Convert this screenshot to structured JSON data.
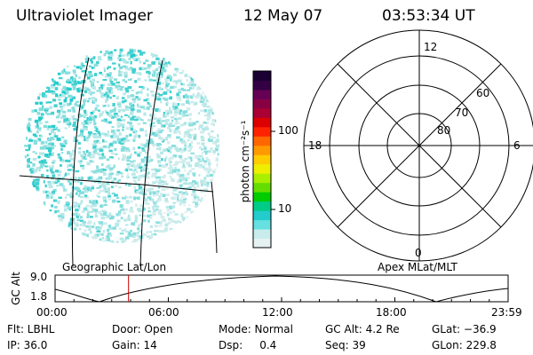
{
  "header": {
    "title": "Ultraviolet Imager",
    "date": "12 May 07",
    "time": "03:53:34 UT"
  },
  "colorbar": {
    "label": "photon cm⁻²s⁻¹",
    "ticks": [
      {
        "label": "100",
        "value": 100
      },
      {
        "label": "10",
        "value": 10
      }
    ],
    "colors": [
      "#e6f2f2",
      "#c8ecec",
      "#66e0e0",
      "#22cccc",
      "#00cc88",
      "#00cc00",
      "#66dd00",
      "#aaee00",
      "#eeee00",
      "#ffcc00",
      "#ff9900",
      "#ff6600",
      "#ff2200",
      "#dd0000",
      "#aa0033",
      "#880044",
      "#660055",
      "#330044",
      "#1a0033"
    ]
  },
  "left_panel": {
    "label": "Geographic Lat/Lon",
    "fill_color": "#22cccc"
  },
  "polar_plot": {
    "label": "Apex MLat/MLT",
    "mlt_labels": {
      "top": "12",
      "left": "18",
      "right": "6",
      "bottom": "0"
    },
    "lat_labels": [
      "60",
      "70",
      "80"
    ]
  },
  "altitude_plot": {
    "ylabel": "GC Alt",
    "yticks": [
      "9.0",
      "1.8"
    ],
    "xticks": [
      "00:00",
      "06:00",
      "12:00",
      "18:00",
      "23:59"
    ],
    "current_time_hours": 3.89,
    "marker_color": "#cc0000"
  },
  "info": {
    "flt": "Flt: LBHL",
    "ip": "IP: 36.0",
    "door": "Door: Open",
    "gain": "Gain: 14",
    "mode": "Mode: Normal",
    "dsp": "Dsp:     0.4",
    "gc_alt": "GC Alt: 4.2 Re",
    "seq": "Seq: 39",
    "glat": "GLat: −36.9",
    "glon": "GLon: 229.8"
  }
}
